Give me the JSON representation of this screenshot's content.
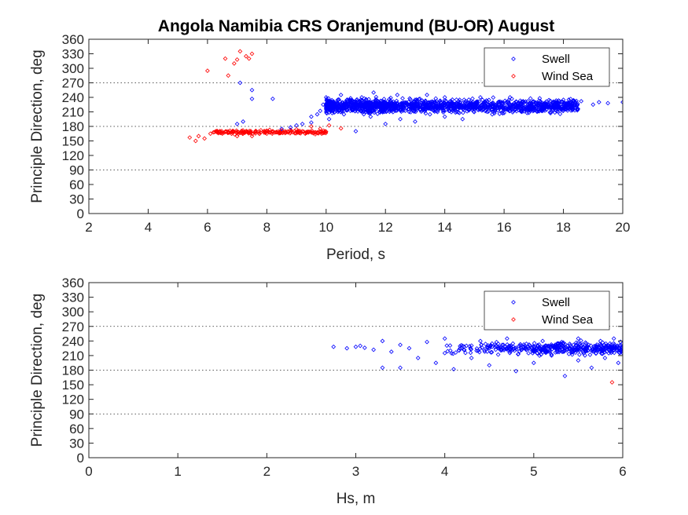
{
  "title": "Angola Namibia CRS Oranjemund (BU-OR) August",
  "colors": {
    "swell": "#0000ff",
    "wind_sea": "#ff0000",
    "axes": "#262626",
    "background": "#ffffff"
  },
  "chart_data": [
    {
      "type": "scatter",
      "title": "Angola Namibia CRS Oranjemund (BU-OR) August",
      "xlabel": "Period, s",
      "ylabel": "Principle Direction, deg",
      "xlim": [
        2,
        20
      ],
      "ylim": [
        0,
        360
      ],
      "xticks": [
        "2",
        "4",
        "6",
        "8",
        "10",
        "12",
        "14",
        "16",
        "18",
        "20"
      ],
      "yticks": [
        "0",
        "30",
        "60",
        "90",
        "120",
        "150",
        "180",
        "210",
        "240",
        "270",
        "300",
        "330",
        "360"
      ],
      "reference_lines_y": [
        90,
        180,
        270
      ],
      "legend": {
        "position": "top-right",
        "entries": [
          "Swell",
          "Wind Sea"
        ]
      },
      "marker": "diamond",
      "series": [
        {
          "name": "Swell",
          "color": "#0000ff",
          "points": [
            [
              7.0,
              185
            ],
            [
              7.2,
              190
            ],
            [
              7.5,
              255
            ],
            [
              7.5,
              237
            ],
            [
              8.2,
              237
            ],
            [
              7.1,
              270
            ],
            [
              8.5,
              175
            ],
            [
              8.8,
              178
            ],
            [
              9.0,
              182
            ],
            [
              9.2,
              185
            ],
            [
              9.5,
              188
            ],
            [
              9.5,
              200
            ],
            [
              9.7,
              205
            ],
            [
              9.8,
              212
            ],
            [
              9.9,
              225
            ],
            [
              10.0,
              220
            ],
            [
              10.0,
              240
            ],
            [
              10.1,
              195
            ],
            [
              10.2,
              230
            ],
            [
              10.3,
              210
            ],
            [
              10.5,
              245
            ],
            [
              10.6,
              205
            ],
            [
              10.8,
              235
            ],
            [
              11.0,
              215
            ],
            [
              11.0,
              170
            ],
            [
              11.2,
              240
            ],
            [
              11.4,
              225
            ],
            [
              11.5,
              200
            ],
            [
              11.6,
              250
            ],
            [
              11.8,
              210
            ],
            [
              12.0,
              230
            ],
            [
              12.0,
              185
            ],
            [
              12.2,
              215
            ],
            [
              12.4,
              245
            ],
            [
              12.5,
              195
            ],
            [
              12.6,
              225
            ],
            [
              12.8,
              210
            ],
            [
              13.0,
              235
            ],
            [
              13.0,
              190
            ],
            [
              13.2,
              220
            ],
            [
              13.4,
              245
            ],
            [
              13.5,
              205
            ],
            [
              13.6,
              228
            ],
            [
              13.8,
              215
            ],
            [
              14.0,
              240
            ],
            [
              14.0,
              200
            ],
            [
              14.2,
              222
            ],
            [
              14.4,
              210
            ],
            [
              14.5,
              235
            ],
            [
              14.6,
              195
            ],
            [
              14.8,
              225
            ],
            [
              15.0,
              215
            ],
            [
              15.2,
              240
            ],
            [
              15.4,
              220
            ],
            [
              15.6,
              205
            ],
            [
              15.8,
              230
            ],
            [
              16.0,
              215
            ],
            [
              16.2,
              240
            ],
            [
              16.4,
              225
            ],
            [
              16.6,
              210
            ],
            [
              16.8,
              232
            ],
            [
              17.0,
              220
            ],
            [
              17.2,
              238
            ],
            [
              17.5,
              226
            ],
            [
              17.8,
              230
            ],
            [
              18.0,
              235
            ],
            [
              18.3,
              228
            ],
            [
              18.6,
              232
            ],
            [
              19.0,
              225
            ],
            [
              19.2,
              230
            ],
            [
              19.5,
              228
            ],
            [
              20.0,
              230
            ]
          ]
        },
        {
          "name": "Wind Sea",
          "color": "#ff0000",
          "points": [
            [
              5.4,
              157
            ],
            [
              5.6,
              150
            ],
            [
              5.7,
              160
            ],
            [
              5.9,
              155
            ],
            [
              6.0,
              295
            ],
            [
              6.1,
              165
            ],
            [
              6.3,
              170
            ],
            [
              6.5,
              165
            ],
            [
              6.6,
              320
            ],
            [
              6.7,
              285
            ],
            [
              6.8,
              168
            ],
            [
              6.9,
              310
            ],
            [
              7.0,
              160
            ],
            [
              7.0,
              318
            ],
            [
              7.1,
              335
            ],
            [
              7.2,
              165
            ],
            [
              7.3,
              325
            ],
            [
              7.4,
              320
            ],
            [
              7.5,
              160
            ],
            [
              7.5,
              330
            ],
            [
              7.6,
              168
            ],
            [
              7.8,
              172
            ],
            [
              8.0,
              165
            ],
            [
              8.2,
              170
            ],
            [
              8.5,
              172
            ],
            [
              8.8,
              168
            ],
            [
              9.0,
              174
            ],
            [
              9.2,
              170
            ],
            [
              9.5,
              180
            ],
            [
              9.8,
              175
            ],
            [
              10.1,
              182
            ],
            [
              10.5,
              176
            ]
          ]
        }
      ]
    },
    {
      "type": "scatter",
      "xlabel": "Hs, m",
      "ylabel": "Principle Direction, deg",
      "xlim": [
        0,
        6
      ],
      "ylim": [
        0,
        360
      ],
      "xticks": [
        "0",
        "1",
        "2",
        "3",
        "4",
        "5",
        "6"
      ],
      "yticks": [
        "0",
        "30",
        "60",
        "90",
        "120",
        "150",
        "180",
        "210",
        "240",
        "270",
        "300",
        "330",
        "360"
      ],
      "reference_lines_y": [
        90,
        180,
        270
      ],
      "legend": {
        "position": "top-right",
        "entries": [
          "Swell",
          "Wind Sea"
        ]
      },
      "marker": "diamond",
      "series": [
        {
          "name": "Swell",
          "color": "#0000ff",
          "points": [
            [
              2.75,
              228
            ],
            [
              2.9,
              225
            ],
            [
              3.0,
              228
            ],
            [
              3.05,
              230
            ],
            [
              3.1,
              226
            ],
            [
              3.2,
              222
            ],
            [
              3.3,
              185
            ],
            [
              3.3,
              240
            ],
            [
              3.4,
              218
            ],
            [
              3.5,
              232
            ],
            [
              3.5,
              185
            ],
            [
              3.6,
              225
            ],
            [
              3.7,
              205
            ],
            [
              3.8,
              238
            ],
            [
              3.9,
              195
            ],
            [
              4.0,
              245
            ],
            [
              4.0,
              215
            ],
            [
              4.1,
              182
            ],
            [
              4.2,
              230
            ],
            [
              4.3,
              205
            ],
            [
              4.4,
              240
            ],
            [
              4.5,
              190
            ],
            [
              4.5,
              225
            ],
            [
              4.6,
              212
            ],
            [
              4.7,
              245
            ],
            [
              4.8,
              178
            ],
            [
              4.9,
              230
            ],
            [
              5.0,
              220
            ],
            [
              5.0,
              195
            ],
            [
              5.1,
              240
            ],
            [
              5.2,
              210
            ],
            [
              5.3,
              235
            ],
            [
              5.35,
              168
            ],
            [
              5.4,
              225
            ],
            [
              5.5,
              245
            ],
            [
              5.5,
              200
            ],
            [
              5.6,
              230
            ],
            [
              5.65,
              185
            ],
            [
              5.7,
              215
            ],
            [
              5.75,
              240
            ],
            [
              5.8,
              205
            ],
            [
              5.85,
              228
            ],
            [
              5.9,
              245
            ],
            [
              5.95,
              195
            ],
            [
              6.0,
              235
            ],
            [
              6.0,
              215
            ]
          ]
        },
        {
          "name": "Wind Sea",
          "color": "#ff0000",
          "points": [
            [
              5.88,
              155
            ]
          ]
        }
      ]
    }
  ]
}
